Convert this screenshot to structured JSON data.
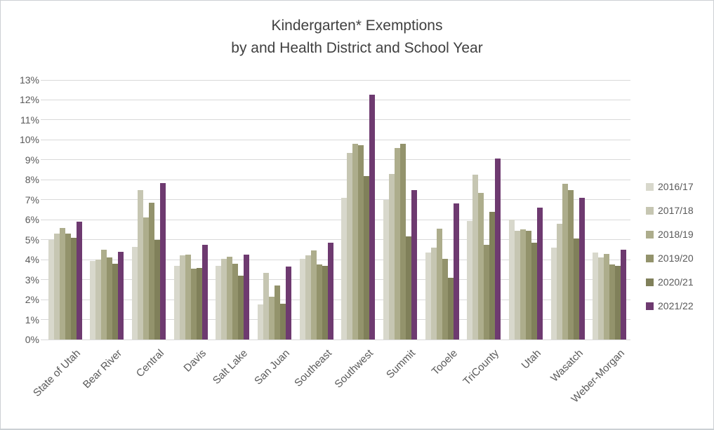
{
  "chart_data": {
    "type": "bar",
    "title_line1": "Kindergarten* Exemptions",
    "title_line2": "by and Health District and School Year",
    "categories": [
      "State of Utah",
      "Bear River",
      "Central",
      "Davis",
      "Salt Lake",
      "San Juan",
      "Southeast",
      "Southwest",
      "Summit",
      "Tooele",
      "TriCounty",
      "Utah",
      "Wasatch",
      "Weber-Morgan"
    ],
    "series": [
      {
        "name": "2016/17",
        "color": "#d8d8cc",
        "values": [
          5.0,
          3.95,
          4.65,
          3.7,
          3.7,
          1.75,
          4.05,
          7.1,
          7.0,
          4.35,
          5.95,
          6.0,
          4.6,
          4.35
        ]
      },
      {
        "name": "2017/18",
        "color": "#c6c6b2",
        "values": [
          5.3,
          4.0,
          7.5,
          4.2,
          4.05,
          3.35,
          4.2,
          9.35,
          8.3,
          4.6,
          8.25,
          5.45,
          5.8,
          4.1
        ]
      },
      {
        "name": "2018/19",
        "color": "#adad8c",
        "values": [
          5.6,
          4.5,
          6.1,
          4.25,
          4.15,
          2.15,
          4.45,
          9.8,
          9.6,
          5.55,
          7.35,
          5.5,
          7.8,
          4.3
        ]
      },
      {
        "name": "2019/20",
        "color": "#93936c",
        "values": [
          5.3,
          4.1,
          6.85,
          3.55,
          3.8,
          2.7,
          3.75,
          9.75,
          9.8,
          4.05,
          4.75,
          5.45,
          7.5,
          3.75
        ]
      },
      {
        "name": "2020/21",
        "color": "#80805a",
        "values": [
          5.1,
          3.8,
          5.0,
          3.6,
          3.2,
          1.8,
          3.7,
          8.2,
          5.15,
          3.1,
          6.4,
          4.85,
          5.05,
          3.7
        ]
      },
      {
        "name": "2021/22",
        "color": "#6e3a70",
        "values": [
          5.9,
          4.4,
          7.85,
          4.75,
          4.25,
          3.65,
          4.85,
          12.25,
          7.5,
          6.8,
          9.05,
          6.6,
          7.1,
          4.5
        ]
      }
    ],
    "ylim": [
      0,
      13
    ],
    "ystep": 1,
    "ytick_suffix": "%",
    "grid": true,
    "legend_position": "right",
    "xlabel": "",
    "ylabel": ""
  },
  "colors": {
    "background": "#ffffff",
    "border": "#ccd0d4",
    "title_text": "#404040",
    "axis_text": "#595959",
    "gridline": "#d9d9d9"
  }
}
